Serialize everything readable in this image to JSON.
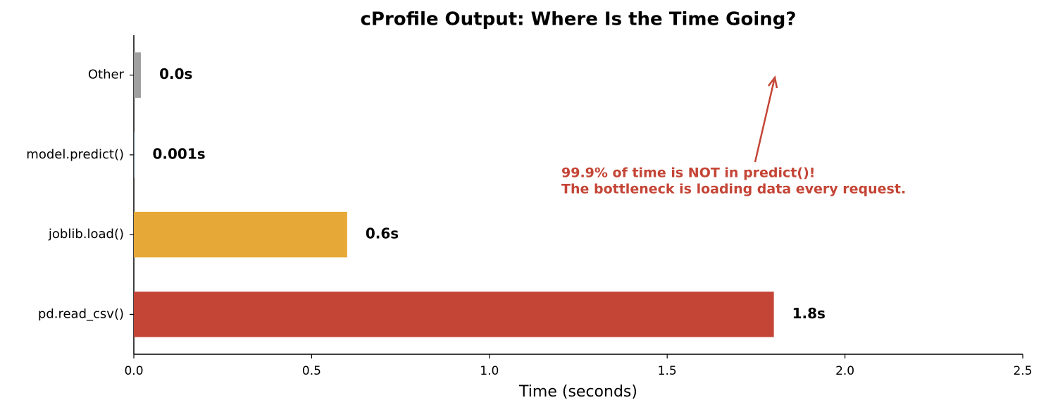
{
  "chart_data": {
    "type": "barh",
    "title": "cProfile Output: Where Is the Time Going?",
    "xlabel": "Time (seconds)",
    "categories": [
      "pd.read_csv()",
      "joblib.load()",
      "model.predict()",
      "Other"
    ],
    "values": [
      1.8,
      0.6,
      0.001,
      0.02
    ],
    "value_labels": [
      "1.8s",
      "0.6s",
      "0.001s",
      "0.0s"
    ],
    "colors": [
      "#c44536",
      "#e6a836",
      "#4a7ab5",
      "#a0a0a0"
    ],
    "xlim": [
      0,
      2.5
    ],
    "xticks": [
      {
        "value": 0,
        "label": "0.0"
      },
      0.5,
      {
        "value": 1,
        "label": "1.0"
      },
      1.5,
      {
        "value": 2,
        "label": "2.0"
      },
      2.5
    ],
    "annotation": [
      "99.9% of time is NOT in predict()!",
      "The bottleneck is loading data every request."
    ],
    "annotation_color": "#c44536"
  }
}
